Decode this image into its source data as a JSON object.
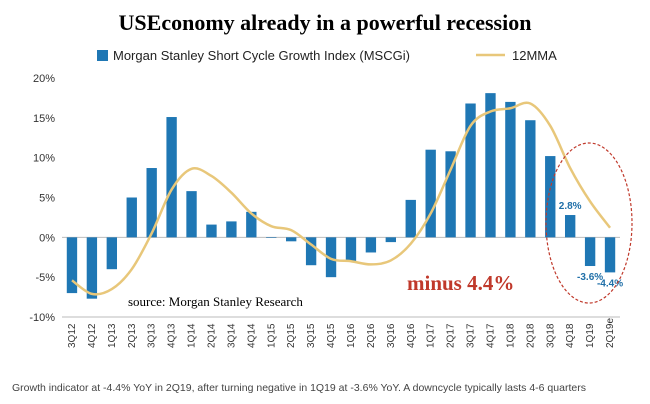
{
  "chart_data": {
    "type": "bar",
    "title": "USEconomy already in a powerful recession",
    "categories": [
      "3Q12",
      "4Q12",
      "1Q13",
      "2Q13",
      "3Q13",
      "4Q13",
      "1Q14",
      "2Q14",
      "3Q14",
      "4Q14",
      "1Q15",
      "2Q15",
      "3Q15",
      "4Q15",
      "1Q16",
      "2Q16",
      "3Q16",
      "4Q16",
      "1Q17",
      "2Q17",
      "3Q17",
      "4Q17",
      "1Q18",
      "2Q18",
      "3Q18",
      "4Q18",
      "1Q19",
      "2Q19e"
    ],
    "series": [
      {
        "name": "Morgan Stanley Short Cycle Growth Index (MSCGi)",
        "type": "bar",
        "color": "#1f77b4",
        "values": [
          -7.0,
          -7.7,
          -4.0,
          5.0,
          8.7,
          15.1,
          5.8,
          1.6,
          2.0,
          3.2,
          0.0,
          -0.5,
          -3.5,
          -5.0,
          -3.0,
          -1.9,
          -0.6,
          4.7,
          11.0,
          10.8,
          16.8,
          18.1,
          17.0,
          14.7,
          10.2,
          2.8,
          -3.6,
          -4.4
        ]
      },
      {
        "name": "12MMA",
        "type": "line",
        "color": "#e8c77a",
        "values": [
          -5.4,
          -7.1,
          -6.5,
          -4.0,
          0.5,
          6.0,
          8.6,
          7.7,
          5.6,
          3.0,
          1.4,
          0.9,
          -0.9,
          -2.7,
          -3.0,
          -3.4,
          -2.9,
          -0.8,
          3.0,
          8.5,
          14.0,
          15.8,
          16.2,
          16.8,
          14.0,
          8.7,
          4.5,
          1.2
        ]
      }
    ],
    "ylim": [
      -10,
      20
    ],
    "yticks": [
      "-10%",
      "-5%",
      "0%",
      "5%",
      "10%",
      "15%",
      "20%"
    ],
    "xlabel": "",
    "ylabel": "",
    "grid": false,
    "legend": "top",
    "data_labels": [
      {
        "category": "4Q18",
        "text": "2.8%"
      },
      {
        "category": "1Q19",
        "text": "-3.6%"
      },
      {
        "category": "2Q19e",
        "text": "-4.4%"
      }
    ],
    "annotations": {
      "source": "source: Morgan Stanley Research",
      "callout": "minus 4.4%",
      "callout_color": "#c0392b"
    },
    "footnote": "Growth indicator at -4.4% YoY in 2Q19, after turning negative in 1Q19 at -3.6% YoY. A downcycle typically lasts 4-6 quarters"
  }
}
